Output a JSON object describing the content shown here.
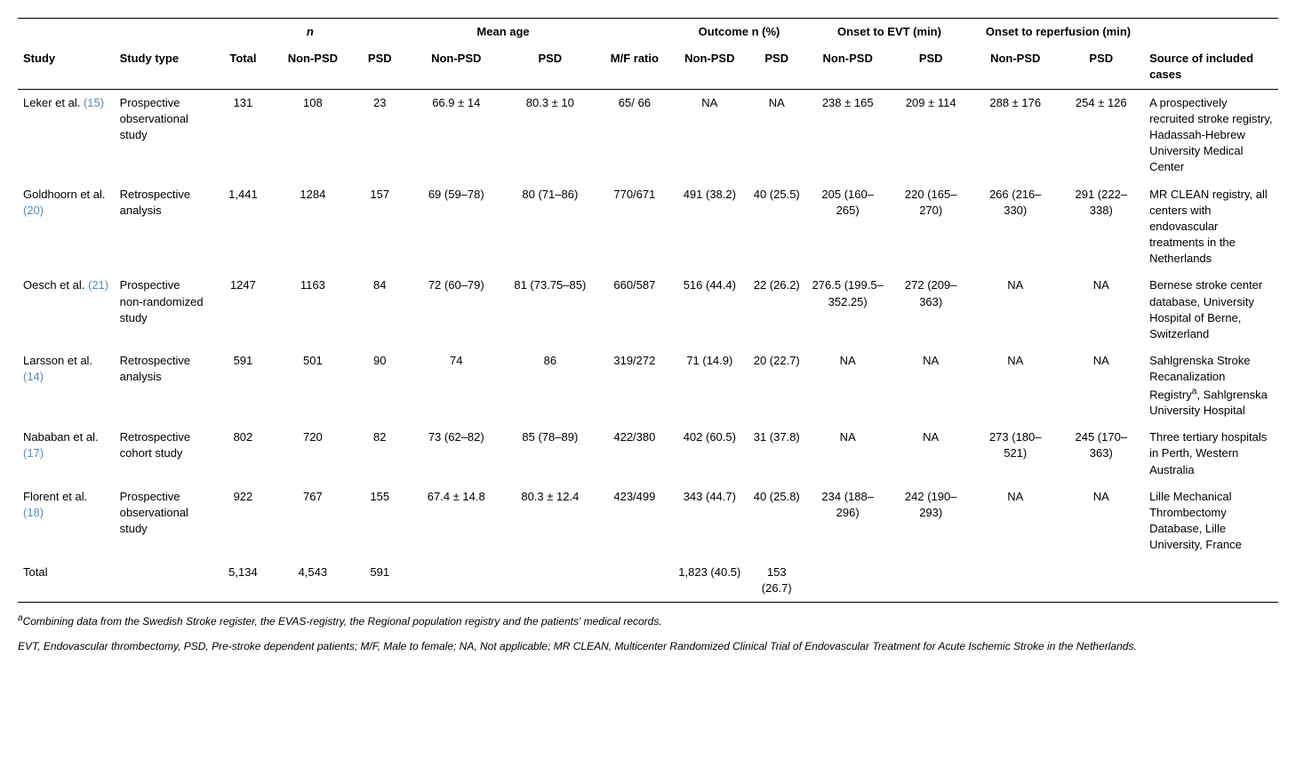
{
  "headers": {
    "study": "Study",
    "study_type": "Study type",
    "n_group": "n",
    "mean_age_group": "Mean age",
    "mf": "M/F ratio",
    "outcome_group": "Outcome n (%)",
    "evt_group": "Onset to EVT (min)",
    "reperf_group": "Onset to reperfusion (min)",
    "source": "Source of included cases",
    "total_sub": "Total",
    "nonpsd_sub": "Non-PSD",
    "psd_sub": "PSD"
  },
  "rows": [
    {
      "study_a": "Leker et al.",
      "study_b": "(15)",
      "type": "Prospective observational study",
      "total": "131",
      "n_np": "108",
      "n_p": "23",
      "age_np": "66.9 ± 14",
      "age_p": "80.3 ± 10",
      "mf": "65/ 66",
      "out_np": "NA",
      "out_p": "NA",
      "evt_np": "238 ± 165",
      "evt_p": "209 ± 114",
      "rep_np": "288 ± 176",
      "rep_p": "254 ± 126",
      "source": "A prospectively recruited stroke registry, Hadassah-Hebrew University Medical Center"
    },
    {
      "study_a": "Goldhoorn et al.",
      "study_b": "(20)",
      "type": "Retrospective analysis",
      "total": "1,441",
      "n_np": "1284",
      "n_p": "157",
      "age_np": "69 (59–78)",
      "age_p": "80 (71–86)",
      "mf": "770/671",
      "out_np": "491 (38.2)",
      "out_p": "40 (25.5)",
      "evt_np": "205 (160–265)",
      "evt_p": "220 (165–270)",
      "rep_np": "266 (216–330)",
      "rep_p": "291 (222–338)",
      "source": "MR CLEAN registry, all centers with endovascular treatments in the Netherlands"
    },
    {
      "study_a": "Oesch et al.",
      "study_b": "(21)",
      "type": "Prospective non-randomized study",
      "total": "1247",
      "n_np": "1163",
      "n_p": "84",
      "age_np": "72 (60–79)",
      "age_p": "81 (73.75–85)",
      "mf": "660/587",
      "out_np": "516 (44.4)",
      "out_p": "22 (26.2)",
      "evt_np": "276.5 (199.5–352.25)",
      "evt_p": "272 (209–363)",
      "rep_np": "NA",
      "rep_p": "NA",
      "source": "Bernese stroke center database, University Hospital of Berne, Switzerland"
    },
    {
      "study_a": "Larsson et al.",
      "study_b": "(14)",
      "type": "Retrospective analysis",
      "total": "591",
      "n_np": "501",
      "n_p": "90",
      "age_np": "74",
      "age_p": "86",
      "mf": "319/272",
      "out_np": "71 (14.9)",
      "out_p": "20 (22.7)",
      "evt_np": "NA",
      "evt_p": "NA",
      "rep_np": "NA",
      "rep_p": "NA",
      "source_html": "Sahlgrenska Stroke Recanalization Registry<sup>a</sup>, Sahlgrenska University Hospital"
    },
    {
      "study_a": "Nababan et al.",
      "study_b": "(17)",
      "type": "Retrospective cohort study",
      "total": "802",
      "n_np": "720",
      "n_p": "82",
      "age_np": "73 (62–82)",
      "age_p": "85 (78–89)",
      "mf": "422/380",
      "out_np": "402 (60.5)",
      "out_p": "31 (37.8)",
      "evt_np": "NA",
      "evt_p": "NA",
      "rep_np": "273 (180–521)",
      "rep_p": "245 (170–363)",
      "source": "Three tertiary hospitals in Perth, Western Australia"
    },
    {
      "study_a": "Florent et al.",
      "study_b": "(18)",
      "type": "Prospective observational study",
      "total": "922",
      "n_np": "767",
      "n_p": "155",
      "age_np": "67.4 ± 14.8",
      "age_p": "80.3 ± 12.4",
      "mf": "423/499",
      "out_np": "343 (44.7)",
      "out_p": "40 (25.8)",
      "evt_np": "234 (188–296)",
      "evt_p": "242 (190–293)",
      "rep_np": "NA",
      "rep_p": "NA",
      "source": "Lille Mechanical Thrombectomy Database, Lille University, France"
    }
  ],
  "total_row": {
    "label": "Total",
    "total": "5,134",
    "n_np": "4,543",
    "n_p": "591",
    "out_np": "1,823 (40.5)",
    "out_p": "153 (26.7)"
  },
  "footnotes": {
    "a_html": "<sup>a</sup>Combining data from the Swedish Stroke register, the EVAS-registry, the Regional population registry and the patients' medical records.",
    "abbrev": "EVT, Endovascular thrombectomy, PSD, Pre-stroke dependent patients; M/F, Male to female; NA, Not applicable; MR CLEAN, Multicenter Randomized Clinical Trial of Endovascular Treatment for Acute Ischemic Stroke in the Netherlands."
  }
}
